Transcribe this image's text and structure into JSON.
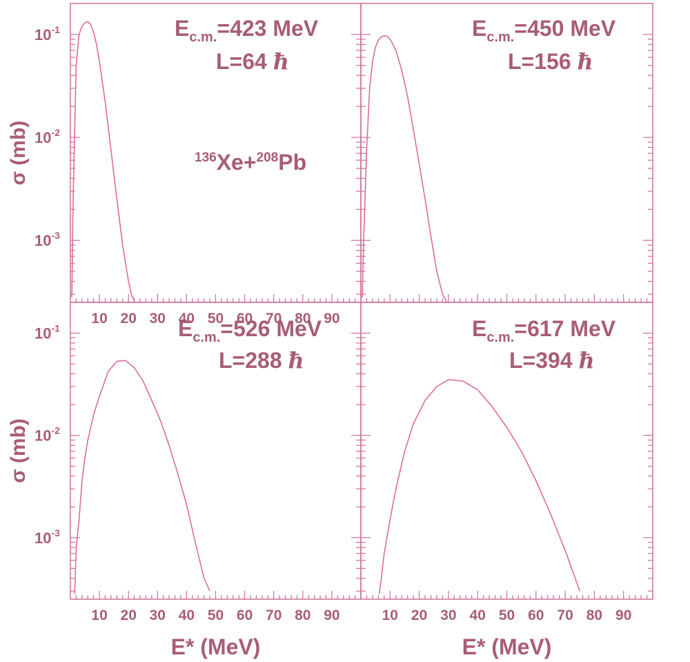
{
  "figure": {
    "system_label": {
      "a1": "136",
      "el1": "Xe+",
      "a2": "208",
      "el2": "Pb"
    },
    "colors": {
      "frame": "#cc6f97",
      "curve": "#dd6aa0",
      "text": "#a85d75"
    },
    "hbar_glyph": "ħ"
  },
  "chart_data": [
    {
      "type": "line",
      "panel": "top-left",
      "title": {
        "e_prefix": "E",
        "e_sub": "c.m.",
        "e_value": "=423 MeV",
        "l_text": "L=64"
      },
      "xlabel": "",
      "ylabel": "σ (mb)",
      "x_scale": "linear",
      "y_scale": "log",
      "xlim": [
        0,
        100
      ],
      "ylim": [
        0.00025,
        0.2
      ],
      "x_ticks": [
        "10",
        "20",
        "30",
        "40",
        "50",
        "60",
        "70",
        "80",
        "90"
      ],
      "y_ticks": [
        {
          "base": "10",
          "exp": "-1"
        },
        {
          "base": "10",
          "exp": "-2"
        },
        {
          "base": "10",
          "exp": "-3"
        }
      ],
      "series": [
        {
          "x": [
            0.5,
            1,
            2,
            3,
            4,
            5,
            6,
            7,
            8,
            9,
            10,
            12,
            14,
            16,
            18,
            20,
            21,
            22.2
          ],
          "y": [
            0.00028,
            0.003,
            0.05,
            0.1,
            0.12,
            0.13,
            0.133,
            0.125,
            0.105,
            0.08,
            0.055,
            0.022,
            0.0075,
            0.0025,
            0.0009,
            0.0004,
            0.0003,
            0.00025
          ]
        }
      ]
    },
    {
      "type": "line",
      "panel": "top-right",
      "title": {
        "e_prefix": "E",
        "e_sub": "c.m.",
        "e_value": "=450 MeV",
        "l_text": "L=156"
      },
      "xlabel": "",
      "ylabel": "",
      "x_scale": "linear",
      "y_scale": "log",
      "xlim": [
        0,
        100
      ],
      "ylim": [
        0.00025,
        0.2
      ],
      "x_ticks": [],
      "y_ticks": [],
      "series": [
        {
          "x": [
            0.5,
            1,
            2,
            3,
            4,
            5,
            6,
            7,
            8,
            9,
            10,
            11,
            12,
            14,
            16,
            18,
            20,
            22,
            24,
            26,
            28,
            29.5
          ],
          "y": [
            0.00028,
            0.0011,
            0.008,
            0.03,
            0.055,
            0.075,
            0.088,
            0.095,
            0.097,
            0.096,
            0.09,
            0.08,
            0.07,
            0.045,
            0.025,
            0.012,
            0.0055,
            0.0025,
            0.0011,
            0.0005,
            0.0003,
            0.00025
          ]
        }
      ]
    },
    {
      "type": "line",
      "panel": "bottom-left",
      "title": {
        "e_prefix": "E",
        "e_sub": "c.m.",
        "e_value": "=526 MeV",
        "l_text": "L=288"
      },
      "xlabel": "E* (MeV)",
      "ylabel": "σ (mb)",
      "x_scale": "linear",
      "y_scale": "log",
      "xlim": [
        0,
        100
      ],
      "ylim": [
        0.00025,
        0.2
      ],
      "x_ticks": [
        "10",
        "20",
        "30",
        "40",
        "50",
        "60",
        "70",
        "80",
        "90"
      ],
      "y_ticks": [
        {
          "base": "10",
          "exp": "-1"
        },
        {
          "base": "10",
          "exp": "-2"
        },
        {
          "base": "10",
          "exp": "-3"
        }
      ],
      "series": [
        {
          "x": [
            1.5,
            2,
            3,
            4,
            5,
            6,
            8,
            10,
            13,
            16,
            19,
            22,
            25,
            28,
            31,
            34,
            37,
            40,
            43,
            46,
            48
          ],
          "y": [
            0.00028,
            0.0008,
            0.0015,
            0.0035,
            0.006,
            0.009,
            0.016,
            0.024,
            0.042,
            0.053,
            0.054,
            0.046,
            0.034,
            0.022,
            0.014,
            0.008,
            0.0042,
            0.0021,
            0.0009,
            0.0004,
            0.0003
          ]
        }
      ]
    },
    {
      "type": "line",
      "panel": "bottom-right",
      "title": {
        "e_prefix": "E",
        "e_sub": "c.m.",
        "e_value": "=617 MeV",
        "l_text": "L=394"
      },
      "xlabel": "E* (MeV)",
      "ylabel": "",
      "x_scale": "linear",
      "y_scale": "log",
      "xlim": [
        0,
        100
      ],
      "ylim": [
        0.00025,
        0.2
      ],
      "x_ticks": [
        "10",
        "20",
        "30",
        "40",
        "50",
        "60",
        "70",
        "80",
        "90"
      ],
      "y_ticks": [],
      "series": [
        {
          "x": [
            6.3,
            7,
            8,
            10,
            12,
            15,
            18,
            22,
            26,
            30,
            35,
            40,
            45,
            50,
            55,
            60,
            65,
            70,
            75
          ],
          "y": [
            0.00028,
            0.0004,
            0.0007,
            0.0015,
            0.003,
            0.007,
            0.013,
            0.022,
            0.03,
            0.035,
            0.034,
            0.028,
            0.019,
            0.012,
            0.007,
            0.0036,
            0.0017,
            0.00075,
            0.0003
          ]
        }
      ]
    }
  ]
}
